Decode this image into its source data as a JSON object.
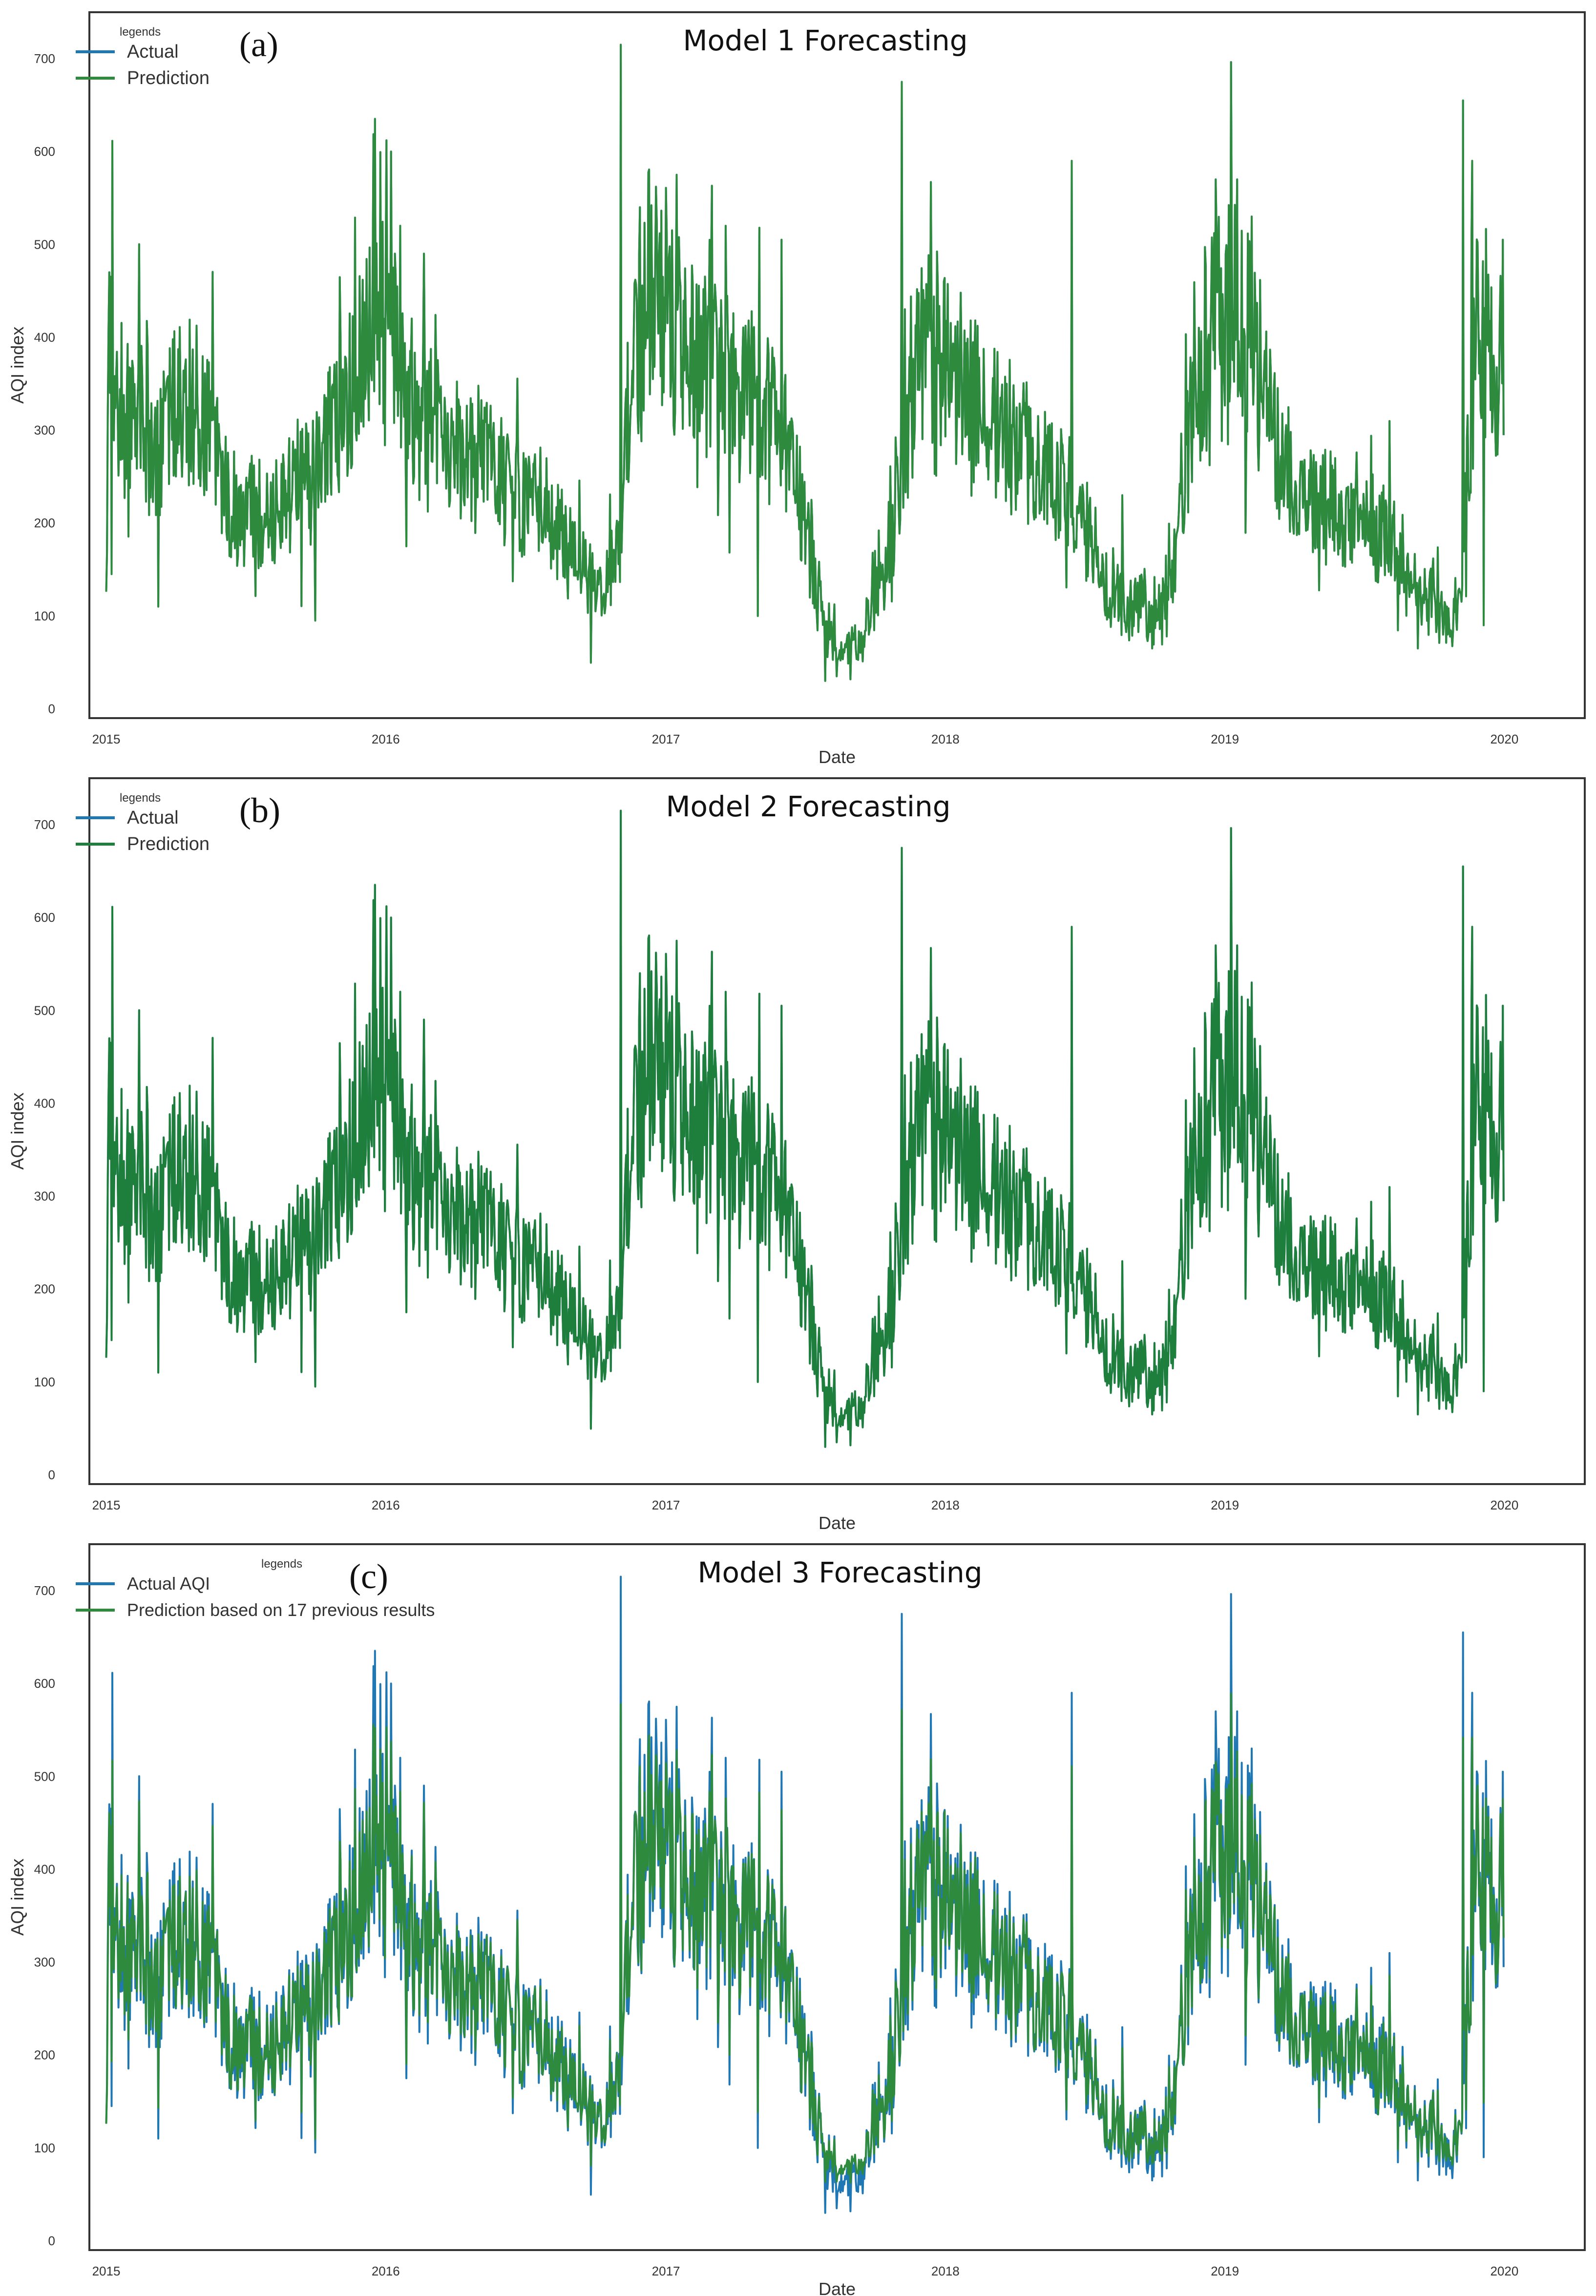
{
  "chart_data": [
    {
      "type": "line",
      "panel_label": "(a)",
      "title": "Model 1 Forecasting",
      "xlabel": "Date",
      "ylabel": "AQI index",
      "x_ticks": [
        "2015",
        "2016",
        "2017",
        "2018",
        "2019",
        "2020"
      ],
      "y_ticks": [
        "0",
        "100",
        "200",
        "300",
        "400",
        "500",
        "600",
        "700"
      ],
      "xlim": [
        "2014-12-10",
        "2020-04-15"
      ],
      "ylim": [
        -10,
        750
      ],
      "grid": false,
      "legend": {
        "title": "legends",
        "placement": "top-left",
        "entries": [
          "Actual",
          "Prediction"
        ]
      },
      "series": [
        {
          "name": "Actual",
          "color": "#1f77b4"
        },
        {
          "name": "Prediction",
          "color": "#2e8b3e"
        }
      ],
      "prediction_offset": 0
    },
    {
      "type": "line",
      "panel_label": "(b)",
      "title": "Model 2 Forecasting",
      "xlabel": "Date",
      "ylabel": "AQI index",
      "x_ticks": [
        "2015",
        "2016",
        "2017",
        "2018",
        "2019",
        "2020"
      ],
      "y_ticks": [
        "0",
        "100",
        "200",
        "300",
        "400",
        "500",
        "600",
        "700"
      ],
      "xlim": [
        "2014-12-10",
        "2020-04-15"
      ],
      "ylim": [
        -10,
        750
      ],
      "grid": false,
      "legend": {
        "title": "legends",
        "placement": "top-left",
        "entries": [
          "Actual",
          "Prediction"
        ]
      },
      "series": [
        {
          "name": "Actual",
          "color": "#1f77b4"
        },
        {
          "name": "Prediction",
          "color": "#1e7e3c"
        }
      ],
      "prediction_offset": 0
    },
    {
      "type": "line",
      "panel_label": "(c)",
      "title": "Model 3 Forecasting",
      "xlabel": "Date",
      "ylabel": "AQI index",
      "x_ticks": [
        "2015",
        "2016",
        "2017",
        "2018",
        "2019",
        "2020"
      ],
      "y_ticks": [
        "0",
        "100",
        "200",
        "300",
        "400",
        "500",
        "600",
        "700"
      ],
      "xlim": [
        "2014-12-10",
        "2020-04-15"
      ],
      "ylim": [
        -10,
        750
      ],
      "grid": false,
      "legend": {
        "title": "legends",
        "placement": "top-left",
        "entries": [
          "Actual AQI",
          "Prediction based on 17 previous results"
        ]
      },
      "series": [
        {
          "name": "Actual AQI",
          "color": "#1f77b4"
        },
        {
          "name": "Prediction based on 17 previous results",
          "color": "#2e8b3e"
        }
      ],
      "prediction_offset": 1
    }
  ],
  "aqi_profile": {
    "dates": [
      "2015-01-01",
      "2015-01-05",
      "2015-01-10",
      "2015-01-20",
      "2015-02-01",
      "2015-02-15",
      "2015-03-01",
      "2015-03-20",
      "2015-04-10",
      "2015-05-01",
      "2015-05-20",
      "2015-06-10",
      "2015-07-01",
      "2015-07-20",
      "2015-08-10",
      "2015-09-01",
      "2015-09-20",
      "2015-10-10",
      "2015-10-25",
      "2015-11-10",
      "2015-11-25",
      "2015-12-10",
      "2015-12-25",
      "2016-01-01",
      "2016-01-10",
      "2016-01-20",
      "2016-02-10",
      "2016-03-01",
      "2016-03-20",
      "2016-04-10",
      "2016-05-01",
      "2016-05-20",
      "2016-06-10",
      "2016-07-01",
      "2016-07-20",
      "2016-08-10",
      "2016-09-01",
      "2016-09-20",
      "2016-10-10",
      "2016-10-25",
      "2016-11-03",
      "2016-11-10",
      "2016-11-25",
      "2016-12-10",
      "2016-12-25",
      "2017-01-10",
      "2017-02-01",
      "2017-03-01",
      "2017-04-01",
      "2017-05-01",
      "2017-06-01",
      "2017-06-20",
      "2017-07-10",
      "2017-08-01",
      "2017-08-20",
      "2017-09-10",
      "2017-10-01",
      "2017-10-20",
      "2017-11-08",
      "2017-11-20",
      "2017-12-10",
      "2017-12-25",
      "2018-01-10",
      "2018-02-01",
      "2018-03-01",
      "2018-04-01",
      "2018-05-01",
      "2018-06-01",
      "2018-06-20",
      "2018-07-10",
      "2018-08-01",
      "2018-09-01",
      "2018-09-20",
      "2018-10-10",
      "2018-10-25",
      "2018-11-10",
      "2018-11-25",
      "2018-12-10",
      "2018-12-25",
      "2019-01-10",
      "2019-02-01",
      "2019-03-01",
      "2019-04-01",
      "2019-05-01",
      "2019-06-01",
      "2019-07-01",
      "2019-08-01",
      "2019-09-01",
      "2019-09-20",
      "2019-10-10",
      "2019-10-25",
      "2019-11-05",
      "2019-11-15",
      "2019-11-25",
      "2019-12-10",
      "2019-12-25",
      "2019-12-31"
    ],
    "values": [
      150,
      400,
      350,
      330,
      310,
      300,
      280,
      300,
      340,
      320,
      290,
      230,
      200,
      210,
      220,
      230,
      240,
      270,
      300,
      330,
      380,
      400,
      420,
      380,
      400,
      380,
      320,
      300,
      280,
      260,
      280,
      260,
      230,
      220,
      210,
      200,
      170,
      150,
      140,
      150,
      180,
      300,
      380,
      480,
      430,
      400,
      380,
      370,
      360,
      320,
      300,
      250,
      160,
      80,
      60,
      70,
      120,
      150,
      280,
      350,
      400,
      380,
      360,
      330,
      310,
      280,
      260,
      240,
      220,
      180,
      130,
      110,
      110,
      110,
      150,
      260,
      340,
      380,
      420,
      440,
      400,
      320,
      240,
      220,
      210,
      200,
      180,
      150,
      120,
      100,
      100,
      110,
      280,
      400,
      380,
      360,
      400
    ],
    "spikes": [
      [
        "2015-01-05",
        470
      ],
      [
        "2015-01-08",
        145
      ],
      [
        "2015-03-10",
        110
      ],
      [
        "2015-10-01",
        95
      ],
      [
        "2016-01-08",
        600
      ],
      [
        "2016-01-20",
        520
      ],
      [
        "2016-01-28",
        175
      ],
      [
        "2016-02-20",
        490
      ],
      [
        "2016-10-01",
        105
      ],
      [
        "2016-11-03",
        715
      ],
      [
        "2016-11-28",
        540
      ],
      [
        "2017-01-15",
        575
      ],
      [
        "2017-03-20",
        520
      ],
      [
        "2017-05-01",
        100
      ],
      [
        "2017-06-01",
        505
      ],
      [
        "2017-07-10",
        225
      ],
      [
        "2017-07-28",
        30
      ],
      [
        "2017-08-12",
        35
      ],
      [
        "2017-11-05",
        675
      ],
      [
        "2017-12-05",
        440
      ],
      [
        "2018-06-15",
        590
      ],
      [
        "2018-08-20",
        230
      ],
      [
        "2018-09-28",
        65
      ],
      [
        "2018-12-20",
        570
      ],
      [
        "2019-02-05",
        530
      ],
      [
        "2019-09-10",
        65
      ],
      [
        "2019-11-08",
        655
      ],
      [
        "2019-11-20",
        590
      ],
      [
        "2019-12-05",
        90
      ],
      [
        "2019-12-30",
        505
      ]
    ]
  }
}
